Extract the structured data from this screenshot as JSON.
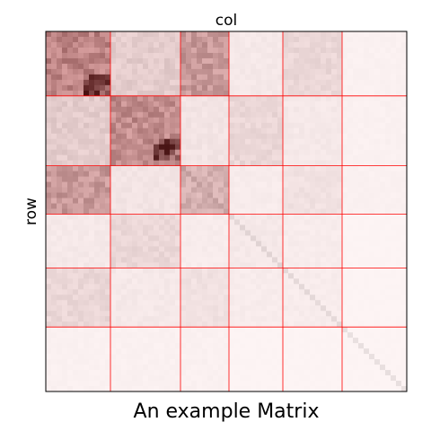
{
  "chart_data": {
    "type": "heatmap",
    "title": "An example Matrix",
    "xlabel": "col",
    "ylabel": "row",
    "block_boundaries": [
      0,
      12,
      25,
      34,
      44,
      55,
      67
    ],
    "block_values": [
      [
        0.35,
        0.12,
        0.28,
        0.04,
        0.09,
        0.02
      ],
      [
        0.12,
        0.32,
        0.05,
        0.09,
        0.04,
        0.02
      ],
      [
        0.28,
        0.05,
        0.2,
        0.03,
        0.06,
        0.02
      ],
      [
        0.04,
        0.09,
        0.03,
        0.04,
        0.03,
        0.01
      ],
      [
        0.09,
        0.04,
        0.06,
        0.03,
        0.03,
        0.01
      ],
      [
        0.02,
        0.02,
        0.02,
        0.01,
        0.01,
        0.01
      ]
    ],
    "hotspots": [
      {
        "row": [
          8,
          11
        ],
        "col": [
          7,
          11
        ],
        "value": 0.95
      },
      {
        "row": [
          20,
          23
        ],
        "col": [
          20,
          24
        ],
        "value": 0.9
      }
    ],
    "colormap": "white-to-black",
    "grid_color": "#ff0000"
  }
}
